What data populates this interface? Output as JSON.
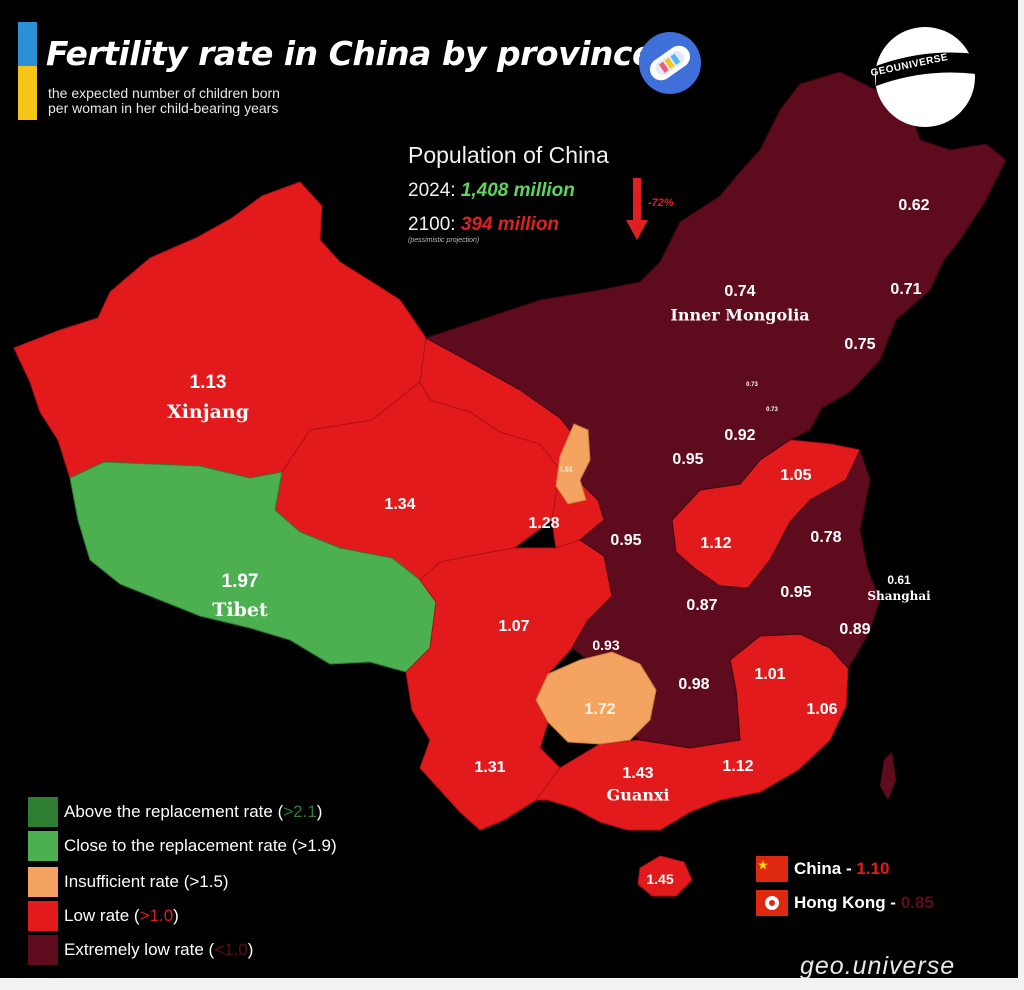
{
  "header": {
    "title": "Fertility rate in China by province",
    "subtitle_line1": "the expected number of children born",
    "subtitle_line2": "per woman in her child-bearing years"
  },
  "population": {
    "title": "Population of China",
    "row2024_label": "2024: ",
    "row2024_value": "1,408 million",
    "row2100_label": "2100: ",
    "row2100_value": "394 million",
    "note": "(pessimistic projection)",
    "change": "-72%"
  },
  "logo": {
    "text": "GEOUNIVERSE"
  },
  "colors": {
    "above_replacement": "#2e7d32",
    "close_replacement": "#4caf50",
    "insufficient": "#f4a460",
    "low": "#e31a1c",
    "extremely_low": "#5e0b1e",
    "green_text": "#5cd65c",
    "red_text": "#e02020"
  },
  "regions": [
    {
      "value": "1.13",
      "name": "Xinjang",
      "class": "low"
    },
    {
      "value": "1.97",
      "name": "Tibet",
      "class": "close"
    },
    {
      "value": "0.74",
      "name": "Inner Mongolia",
      "class": "extremely_low"
    },
    {
      "value": "0.62",
      "class": "extremely_low"
    },
    {
      "value": "0.71",
      "class": "extremely_low"
    },
    {
      "value": "0.75",
      "class": "extremely_low"
    },
    {
      "value": "0.73",
      "class": "extremely_low"
    },
    {
      "value": "0.73",
      "class": "extremely_low"
    },
    {
      "value": "0.92",
      "class": "extremely_low"
    },
    {
      "value": "0.95",
      "class": "extremely_low"
    },
    {
      "value": "1.05",
      "class": "low"
    },
    {
      "value": "1.34",
      "class": "low"
    },
    {
      "value": "1.51",
      "class": "insufficient"
    },
    {
      "value": "1.28",
      "class": "low"
    },
    {
      "value": "0.95",
      "class": "extremely_low"
    },
    {
      "value": "1.12",
      "class": "low"
    },
    {
      "value": "0.78",
      "class": "extremely_low"
    },
    {
      "value": "0.61",
      "name": "Shanghai",
      "class": "extremely_low"
    },
    {
      "value": "0.95",
      "class": "extremely_low"
    },
    {
      "value": "0.87",
      "class": "extremely_low"
    },
    {
      "value": "1.07",
      "class": "low"
    },
    {
      "value": "0.89",
      "class": "extremely_low"
    },
    {
      "value": "0.93",
      "class": "extremely_low"
    },
    {
      "value": "1.01",
      "class": "low"
    },
    {
      "value": "0.98",
      "class": "extremely_low"
    },
    {
      "value": "1.72",
      "class": "insufficient"
    },
    {
      "value": "1.06",
      "class": "low"
    },
    {
      "value": "1.31",
      "class": "low"
    },
    {
      "value": "1.43",
      "name": "Guanxi",
      "class": "low"
    },
    {
      "value": "1.12",
      "class": "low"
    },
    {
      "value": "1.45",
      "class": "low"
    }
  ],
  "legend": [
    {
      "label": "Above the replacement rate (",
      "threshold": ">2.1",
      "close": ")",
      "threshold_color": "#2e7d32"
    },
    {
      "label": "Close to the replacement rate (",
      "threshold": ">1.9",
      "close": ")",
      "threshold_color": "#ffffff"
    },
    {
      "label": "Insufficient rate (",
      "threshold": ">1.5",
      "close": ")",
      "threshold_color": "#ffffff"
    },
    {
      "label": "Low rate (",
      "threshold": ">1.0",
      "close": ")",
      "threshold_color": "#e31a1c"
    },
    {
      "label": "Extremely low rate (",
      "threshold": "<1.0",
      "close": ")",
      "threshold_color": "#5e0b1e"
    }
  ],
  "national": [
    {
      "label": "China - ",
      "value": "1.10",
      "value_color": "#e31a1c"
    },
    {
      "label": "Hong Kong - ",
      "value": "0.85",
      "value_color": "#5e0b1e"
    }
  ],
  "watermark": "geo.universe"
}
